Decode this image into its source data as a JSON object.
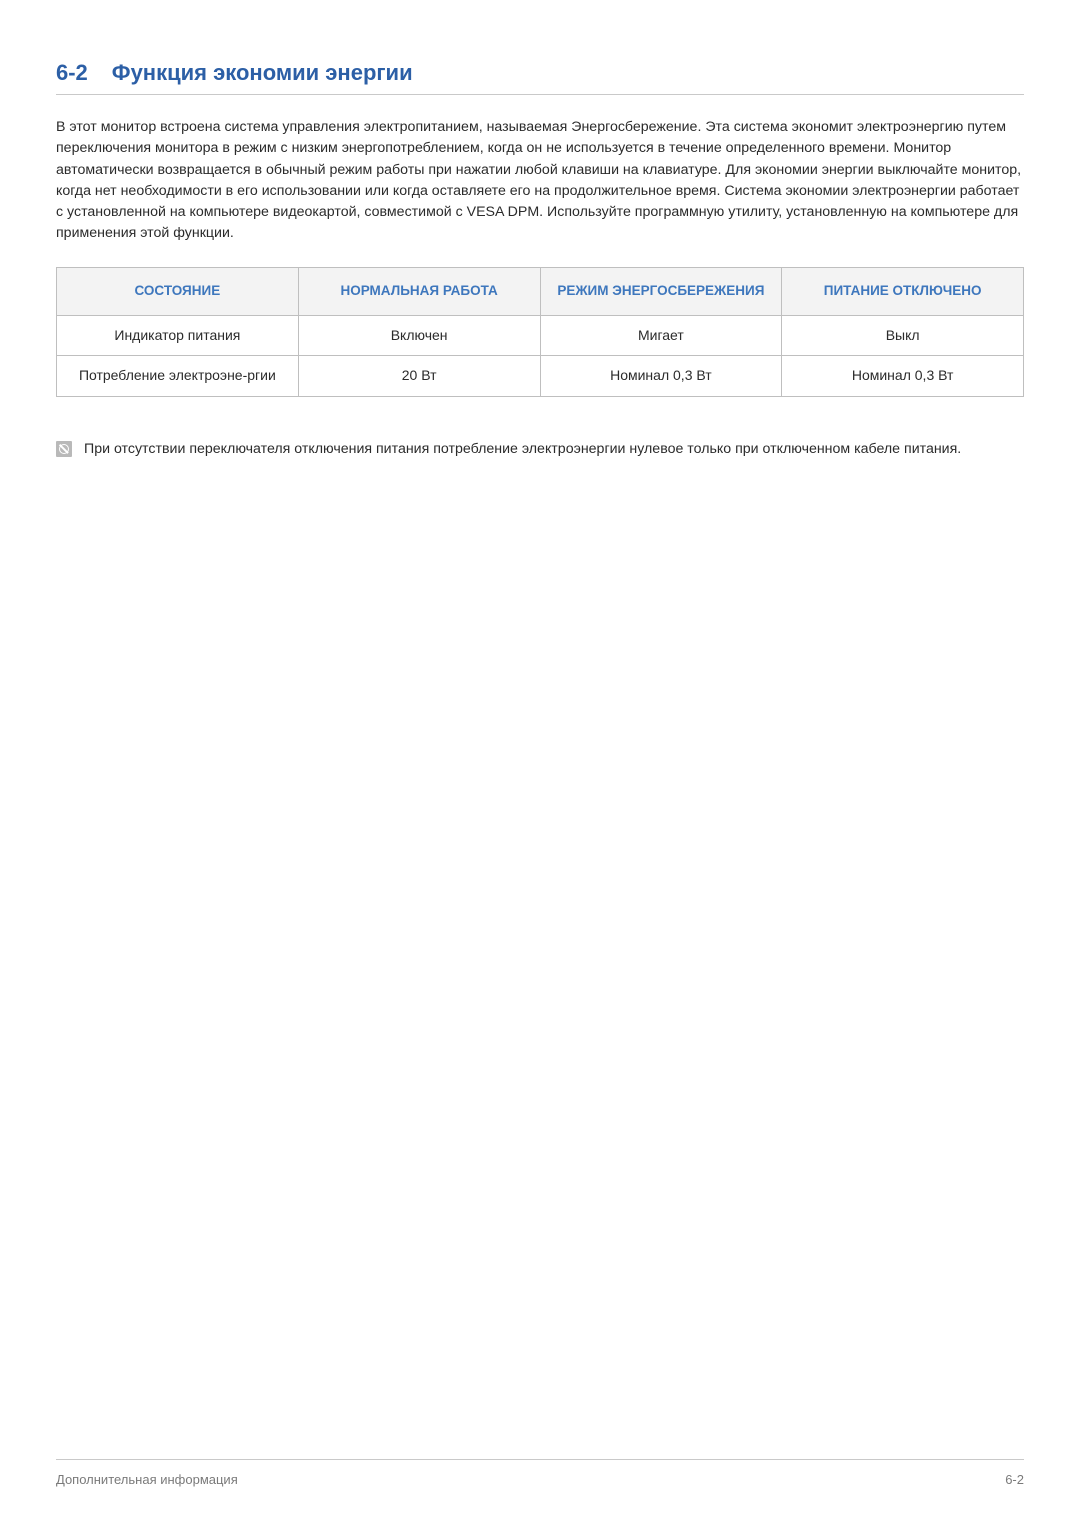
{
  "heading": {
    "number": "6-2",
    "title": "Функция экономии энергии"
  },
  "body_paragraph": "В этот монитор встроена система управления электропитанием, называемая Энергосбережение. Эта система экономит электроэнергию путем переключения монитора в режим с низким энергопотреблением, когда он не используется в течение определенного времени. Монитор автоматически возвращается в обычный режим работы при нажатии любой клавиши на клавиатуре. Для экономии энергии выключайте монитор, когда нет необходимости в его использовании или когда оставляете его на продолжительное время. Система экономии электроэнергии работает с установленной на компьютере видеокартой, совместимой с VESA DPM. Используйте программную утилиту, установленную на компьютере для применения этой функции.",
  "table": {
    "columns": [
      "СОСТОЯНИЕ",
      "НОРМАЛЬНАЯ РАБОТА",
      "РЕЖИМ ЭНЕРГОСБЕРЕЖЕНИЯ",
      "ПИТАНИЕ ОТКЛЮЧЕНО"
    ],
    "rows": [
      [
        "Индикатор питания",
        "Включен",
        "Мигает",
        "Выкл"
      ],
      [
        "Потребление электроэне-ргии",
        "20 Вт",
        "Номинал 0,3 Вт",
        "Номинал 0,3 Вт"
      ]
    ],
    "header_bg": "#f3f3f3",
    "header_color": "#3e77bd",
    "border_color": "#bfbfbf",
    "cell_fontsize": 14
  },
  "note": {
    "text": "При отсутствии переключателя отключения питания потребление электроэнергии нулевое только при отключенном кабеле питания."
  },
  "footer": {
    "left": "Дополнительная информация",
    "right": "6-2"
  },
  "colors": {
    "heading": "#2c5fa6",
    "body_text": "#2b2b2b",
    "footer_text": "#7a7a7a",
    "rule": "#c9c9c9",
    "background": "#ffffff"
  }
}
